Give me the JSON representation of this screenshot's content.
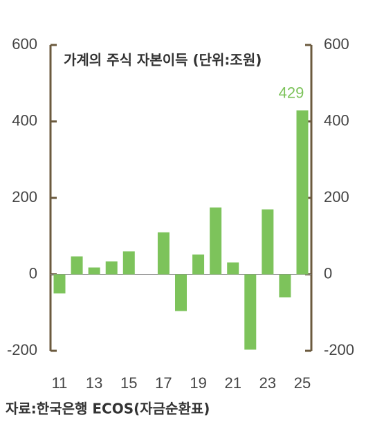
{
  "chart_data": {
    "type": "bar",
    "title": "가계의 주식 자본이득 (단위:조원)",
    "source": "자료:한국은행 ECOS(자금순환표)",
    "categories": [
      "11",
      null,
      "13",
      null,
      "15",
      null,
      "17",
      null,
      "19",
      null,
      "21",
      null,
      "23",
      null,
      "25"
    ],
    "values": [
      -50,
      47,
      18,
      34,
      60,
      0,
      110,
      -96,
      52,
      175,
      31,
      -197,
      170,
      -60,
      429
    ],
    "value_labels": [
      null,
      null,
      null,
      null,
      null,
      null,
      null,
      null,
      null,
      null,
      null,
      null,
      null,
      null,
      "429"
    ],
    "color": "#7dc35b",
    "axis_color": "#6b5a3e",
    "ylim": [
      -200,
      600
    ],
    "yticks": [
      -200,
      0,
      200,
      400,
      600
    ],
    "y2lim": [
      -200,
      600
    ],
    "y2ticks": [
      -200,
      0,
      200,
      400,
      600
    ]
  }
}
